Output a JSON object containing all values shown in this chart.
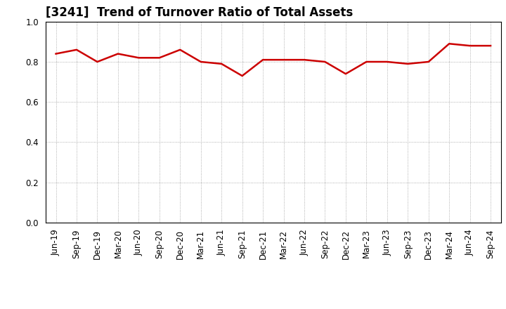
{
  "title": "[3241]  Trend of Turnover Ratio of Total Assets",
  "labels": [
    "Jun-19",
    "Sep-19",
    "Dec-19",
    "Mar-20",
    "Jun-20",
    "Sep-20",
    "Dec-20",
    "Mar-21",
    "Jun-21",
    "Sep-21",
    "Dec-21",
    "Mar-22",
    "Jun-22",
    "Sep-22",
    "Dec-22",
    "Mar-23",
    "Jun-23",
    "Sep-23",
    "Dec-23",
    "Mar-24",
    "Jun-24",
    "Sep-24"
  ],
  "values": [
    0.84,
    0.86,
    0.8,
    0.84,
    0.82,
    0.82,
    0.86,
    0.8,
    0.79,
    0.73,
    0.81,
    0.81,
    0.81,
    0.8,
    0.74,
    0.8,
    0.8,
    0.79,
    0.8,
    0.89,
    0.88,
    0.88
  ],
  "line_color": "#cc0000",
  "line_width": 1.8,
  "ylim": [
    0.0,
    1.0
  ],
  "yticks": [
    0.0,
    0.2,
    0.4,
    0.6,
    0.8,
    1.0
  ],
  "background_color": "#ffffff",
  "grid_color": "#999999",
  "title_fontsize": 12,
  "tick_fontsize": 8.5
}
